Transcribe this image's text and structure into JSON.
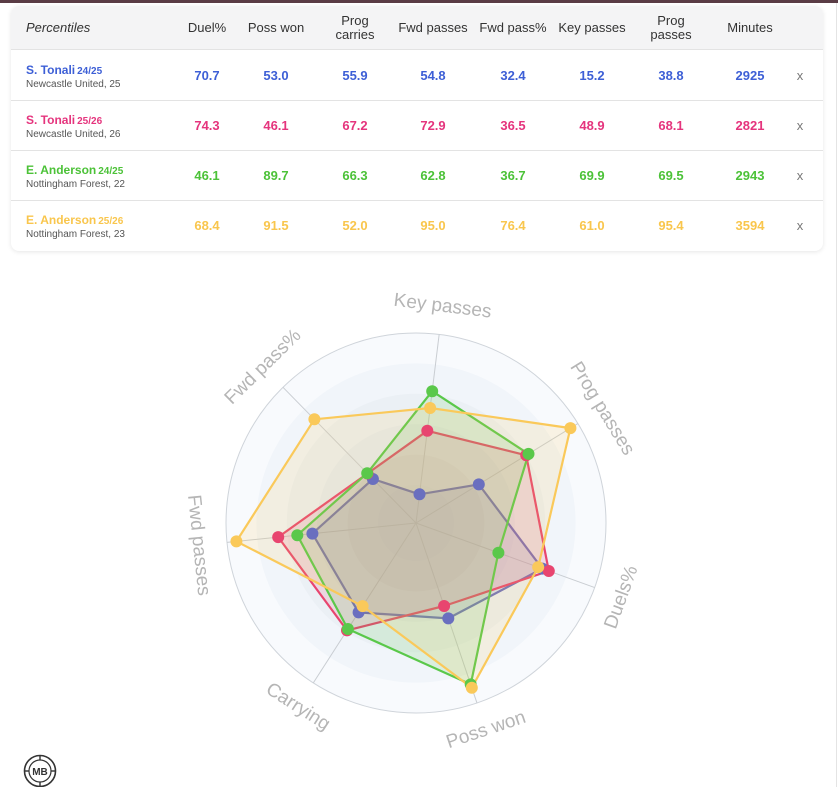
{
  "table": {
    "header_label": "Percentiles",
    "columns": [
      "Duel%",
      "Poss won",
      "Prog carries",
      "Fwd passes",
      "Fwd pass%",
      "Key passes",
      "Prog passes",
      "Minutes"
    ],
    "remove_label": "x",
    "rows": [
      {
        "name": "S. Tonali",
        "season": "24/25",
        "club": "Newcastle United, 25",
        "color": "#3d5fd6",
        "values": [
          "70.7",
          "53.0",
          "55.9",
          "54.8",
          "32.4",
          "15.2",
          "38.8",
          "2925"
        ]
      },
      {
        "name": "S. Tonali",
        "season": "25/26",
        "club": "Newcastle United, 26",
        "color": "#e5347d",
        "values": [
          "74.3",
          "46.1",
          "67.2",
          "72.9",
          "36.5",
          "48.9",
          "68.1",
          "2821"
        ]
      },
      {
        "name": "E. Anderson",
        "season": "24/25",
        "club": "Nottingham Forest, 22",
        "color": "#4cc238",
        "values": [
          "46.1",
          "89.7",
          "66.3",
          "62.8",
          "36.7",
          "69.9",
          "69.5",
          "2943"
        ]
      },
      {
        "name": "E. Anderson",
        "season": "25/26",
        "club": "Nottingham Forest, 23",
        "color": "#f9c64d",
        "values": [
          "68.4",
          "91.5",
          "52.0",
          "95.0",
          "76.4",
          "61.0",
          "95.4",
          "3594"
        ]
      }
    ]
  },
  "chart_data": {
    "type": "radar",
    "axes": [
      "Key passes",
      "Prog passes",
      "Duels%",
      "Poss won",
      "Carrying",
      "Fwd passes",
      "Fwd pass%"
    ],
    "range": [
      0,
      100
    ],
    "series": [
      {
        "name": "S. Tonali 24/25",
        "color": "#6a6fbf",
        "values": [
          15.2,
          38.8,
          70.7,
          53.0,
          55.9,
          54.8,
          32.4
        ]
      },
      {
        "name": "S. Tonali 25/26",
        "color": "#e8456f",
        "values": [
          48.9,
          68.1,
          74.3,
          46.1,
          67.2,
          72.9,
          36.5
        ]
      },
      {
        "name": "E. Anderson 24/25",
        "color": "#5ac84a",
        "values": [
          69.9,
          69.5,
          46.1,
          89.7,
          66.3,
          62.8,
          36.7
        ]
      },
      {
        "name": "E. Anderson 25/26",
        "color": "#fac95a",
        "values": [
          61.0,
          95.4,
          68.4,
          91.5,
          52.0,
          95.0,
          76.4
        ]
      }
    ]
  },
  "logo": {
    "text": "MB"
  }
}
